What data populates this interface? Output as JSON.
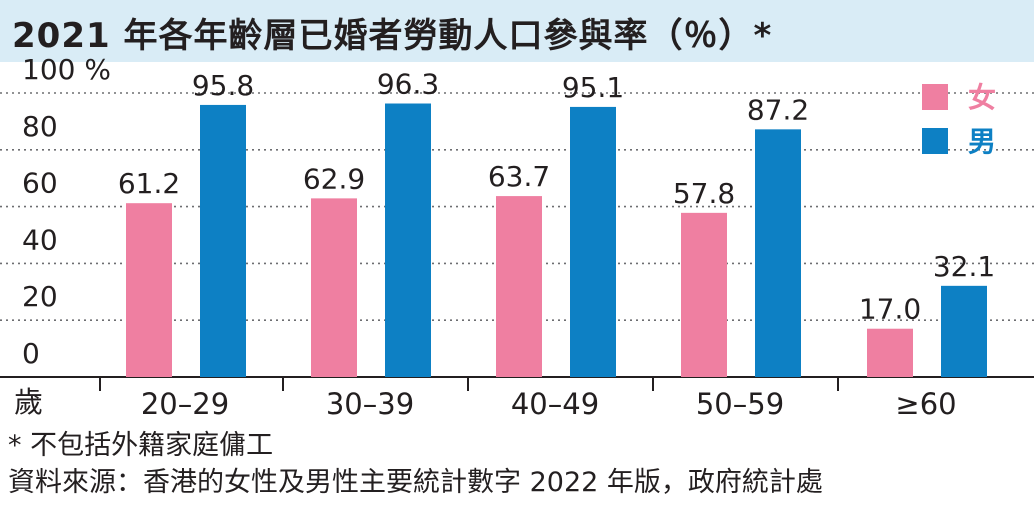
{
  "title": "2021 年各年齡層已婚者勞動人口參與率（％）*",
  "chart_data": {
    "type": "bar",
    "title": "2021 年各年齡層已婚者勞動人口參與率（％）*",
    "categories": [
      "20–29",
      "30–39",
      "40–49",
      "50–59",
      "≥60"
    ],
    "x_prefix_label": "歲",
    "series": [
      {
        "name": "女",
        "color": "#ef7fa1",
        "values": [
          61.2,
          62.9,
          63.7,
          57.8,
          17.0
        ]
      },
      {
        "name": "男",
        "color": "#0d80c4",
        "values": [
          95.8,
          96.3,
          95.1,
          87.2,
          32.1
        ]
      }
    ],
    "value_labels": [
      [
        "61.2",
        "62.9",
        "63.7",
        "57.8",
        "17.0"
      ],
      [
        "95.8",
        "96.3",
        "95.1",
        "87.2",
        "32.1"
      ]
    ],
    "ylim": [
      0,
      100
    ],
    "yticks": [
      0,
      20,
      40,
      60,
      80,
      100
    ],
    "ytick_labels": [
      "0",
      "20",
      "40",
      "60",
      "80",
      "100 %"
    ],
    "grid": "dotted horizontal",
    "legend_position": "top-right"
  },
  "footnotes": {
    "note": "* 不包括外籍家庭傭工",
    "source": "資料來源：香港的女性及男性主要統計數字 2022 年版，政府統計處"
  }
}
